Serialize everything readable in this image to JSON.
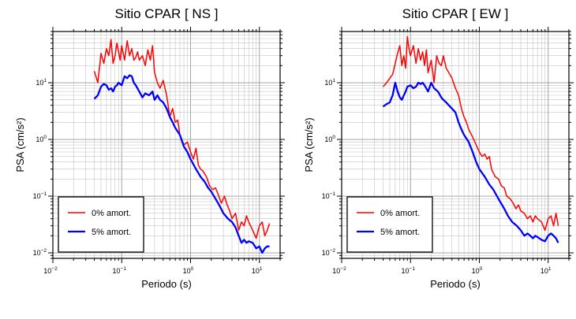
{
  "chart_data": [
    {
      "type": "line",
      "title": "Sitio CPAR [ NS ]",
      "xlabel": "Periodo (s)",
      "ylabel": "PSA (cm/s²)",
      "x_scale": "log",
      "y_scale": "log",
      "xlim": [
        0.01,
        20
      ],
      "ylim": [
        0.008,
        80
      ],
      "x_ticks": [
        {
          "value": 0.01,
          "base": "10",
          "exp": "−2"
        },
        {
          "value": 0.1,
          "base": "10",
          "exp": "−1"
        },
        {
          "value": 1,
          "base": "10",
          "exp": "0"
        },
        {
          "value": 10,
          "base": "10",
          "exp": "1"
        }
      ],
      "y_ticks": [
        {
          "value": 0.01,
          "base": "10",
          "exp": "−2"
        },
        {
          "value": 0.1,
          "base": "10",
          "exp": "−1"
        },
        {
          "value": 1,
          "base": "10",
          "exp": "0"
        },
        {
          "value": 10,
          "base": "10",
          "exp": "1"
        }
      ],
      "grid": true,
      "legend_position": "bottom-left",
      "series": [
        {
          "name": "0% amort.",
          "color": "#ff0000",
          "x": [
            0.04,
            0.045,
            0.05,
            0.055,
            0.06,
            0.065,
            0.07,
            0.075,
            0.08,
            0.085,
            0.09,
            0.095,
            0.1,
            0.11,
            0.12,
            0.13,
            0.14,
            0.15,
            0.16,
            0.17,
            0.18,
            0.2,
            0.22,
            0.24,
            0.26,
            0.28,
            0.3,
            0.33,
            0.36,
            0.4,
            0.45,
            0.5,
            0.55,
            0.6,
            0.65,
            0.7,
            0.8,
            0.9,
            1.0,
            1.1,
            1.2,
            1.3,
            1.4,
            1.5,
            1.7,
            1.9,
            2.1,
            2.3,
            2.5,
            2.8,
            3.1,
            3.4,
            3.7,
            4.0,
            4.5,
            5.0,
            5.5,
            6.0,
            6.5,
            7.0,
            8.0,
            9.0,
            10.0,
            11.0,
            12.0,
            13.0,
            14.0
          ],
          "y": [
            16,
            10,
            33,
            22,
            40,
            30,
            58,
            22,
            30,
            50,
            35,
            25,
            45,
            25,
            55,
            30,
            40,
            25,
            28,
            35,
            25,
            30,
            20,
            38,
            25,
            45,
            15,
            10,
            8,
            11,
            6,
            2.5,
            3.5,
            2.0,
            2.2,
            1.2,
            0.8,
            0.9,
            0.6,
            0.45,
            0.7,
            0.35,
            0.3,
            0.28,
            0.22,
            0.15,
            0.13,
            0.14,
            0.11,
            0.075,
            0.1,
            0.07,
            0.055,
            0.04,
            0.05,
            0.025,
            0.035,
            0.03,
            0.045,
            0.035,
            0.025,
            0.018,
            0.03,
            0.035,
            0.02,
            0.025,
            0.033
          ]
        },
        {
          "name": "5% amort.",
          "color": "#0000ff",
          "x": [
            0.04,
            0.045,
            0.05,
            0.055,
            0.06,
            0.065,
            0.07,
            0.075,
            0.08,
            0.085,
            0.09,
            0.1,
            0.11,
            0.12,
            0.13,
            0.14,
            0.15,
            0.16,
            0.18,
            0.2,
            0.22,
            0.25,
            0.28,
            0.3,
            0.33,
            0.36,
            0.4,
            0.45,
            0.5,
            0.55,
            0.6,
            0.7,
            0.8,
            0.9,
            1.0,
            1.2,
            1.4,
            1.6,
            1.8,
            2.0,
            2.3,
            2.6,
            3.0,
            3.5,
            4.0,
            4.5,
            5.0,
            5.5,
            6.0,
            6.5,
            7.0,
            8.0,
            9.0,
            10.0,
            11.0,
            12.0,
            13.0,
            14.0
          ],
          "y": [
            5.2,
            6.0,
            8.5,
            9.5,
            9.0,
            7.5,
            8.0,
            7.0,
            8.5,
            9.0,
            10.0,
            9.0,
            13.0,
            12.0,
            13.5,
            13.0,
            10.0,
            9.0,
            7.0,
            5.5,
            6.5,
            6.0,
            7.0,
            5.0,
            6.0,
            5.0,
            4.5,
            3.5,
            2.5,
            2.0,
            1.6,
            1.2,
            0.75,
            0.6,
            0.45,
            0.3,
            0.22,
            0.18,
            0.14,
            0.12,
            0.09,
            0.07,
            0.05,
            0.04,
            0.035,
            0.028,
            0.02,
            0.015,
            0.017,
            0.015,
            0.016,
            0.015,
            0.012,
            0.013,
            0.01,
            0.012,
            0.013,
            0.013
          ]
        }
      ]
    },
    {
      "type": "line",
      "title": "Sitio CPAR [ EW ]",
      "xlabel": "Periodo (s)",
      "ylabel": "PSA (cm/s²)",
      "x_scale": "log",
      "y_scale": "log",
      "xlim": [
        0.01,
        20
      ],
      "ylim": [
        0.008,
        80
      ],
      "x_ticks": [
        {
          "value": 0.01,
          "base": "10",
          "exp": "−2"
        },
        {
          "value": 0.1,
          "base": "10",
          "exp": "−1"
        },
        {
          "value": 1,
          "base": "10",
          "exp": "0"
        },
        {
          "value": 10,
          "base": "10",
          "exp": "1"
        }
      ],
      "y_ticks": [
        {
          "value": 0.01,
          "base": "10",
          "exp": "−2"
        },
        {
          "value": 0.1,
          "base": "10",
          "exp": "−1"
        },
        {
          "value": 1,
          "base": "10",
          "exp": "0"
        },
        {
          "value": 10,
          "base": "10",
          "exp": "1"
        }
      ],
      "grid": true,
      "legend_position": "bottom-left",
      "series": [
        {
          "name": "0% amort.",
          "color": "#ff0000",
          "x": [
            0.04,
            0.045,
            0.05,
            0.055,
            0.06,
            0.065,
            0.07,
            0.075,
            0.08,
            0.085,
            0.09,
            0.095,
            0.1,
            0.11,
            0.12,
            0.13,
            0.14,
            0.15,
            0.16,
            0.17,
            0.18,
            0.2,
            0.22,
            0.24,
            0.26,
            0.28,
            0.3,
            0.33,
            0.36,
            0.4,
            0.45,
            0.5,
            0.55,
            0.6,
            0.65,
            0.7,
            0.8,
            0.9,
            1.0,
            1.1,
            1.2,
            1.3,
            1.4,
            1.5,
            1.7,
            1.9,
            2.1,
            2.3,
            2.5,
            2.8,
            3.1,
            3.4,
            3.7,
            4.0,
            4.5,
            5.0,
            5.5,
            6.0,
            6.5,
            7.0,
            8.0,
            9.0,
            10.0,
            11.0,
            12.0,
            13.0,
            14.0
          ],
          "y": [
            8.5,
            10.0,
            12.0,
            14.0,
            22.0,
            33.0,
            45.0,
            20.0,
            30.0,
            18.0,
            65.0,
            40.0,
            30.0,
            45.0,
            22.0,
            40.0,
            25.0,
            35.0,
            20.0,
            38.0,
            15.0,
            25.0,
            10.0,
            30.0,
            22.0,
            20.0,
            30.0,
            18.0,
            15.0,
            12.0,
            8.0,
            6.0,
            3.5,
            2.5,
            2.0,
            1.5,
            1.1,
            0.8,
            0.6,
            0.5,
            0.55,
            0.45,
            0.5,
            0.3,
            0.22,
            0.2,
            0.15,
            0.14,
            0.1,
            0.09,
            0.075,
            0.06,
            0.07,
            0.055,
            0.05,
            0.04,
            0.045,
            0.035,
            0.045,
            0.04,
            0.035,
            0.025,
            0.04,
            0.045,
            0.03,
            0.05,
            0.03
          ]
        },
        {
          "name": "5% amort.",
          "color": "#0000ff",
          "x": [
            0.04,
            0.045,
            0.05,
            0.055,
            0.06,
            0.065,
            0.07,
            0.075,
            0.08,
            0.085,
            0.09,
            0.1,
            0.11,
            0.12,
            0.13,
            0.14,
            0.15,
            0.16,
            0.18,
            0.2,
            0.22,
            0.25,
            0.28,
            0.3,
            0.33,
            0.36,
            0.4,
            0.45,
            0.5,
            0.55,
            0.6,
            0.7,
            0.8,
            0.9,
            1.0,
            1.2,
            1.4,
            1.6,
            1.8,
            2.0,
            2.3,
            2.6,
            3.0,
            3.5,
            4.0,
            4.5,
            5.0,
            5.5,
            6.0,
            6.5,
            7.0,
            8.0,
            9.0,
            10.0,
            11.0,
            12.0,
            13.0,
            14.0
          ],
          "y": [
            3.8,
            4.2,
            4.5,
            6.0,
            10.0,
            7.0,
            5.5,
            5.0,
            6.0,
            7.0,
            8.5,
            9.0,
            8.0,
            8.5,
            10.0,
            9.5,
            10.0,
            9.0,
            7.0,
            10.0,
            8.0,
            7.0,
            5.5,
            5.0,
            4.5,
            4.0,
            3.5,
            3.0,
            2.0,
            1.5,
            1.2,
            0.9,
            0.6,
            0.4,
            0.3,
            0.22,
            0.16,
            0.13,
            0.1,
            0.08,
            0.06,
            0.045,
            0.035,
            0.03,
            0.025,
            0.02,
            0.022,
            0.02,
            0.018,
            0.02,
            0.019,
            0.017,
            0.016,
            0.02,
            0.022,
            0.02,
            0.018,
            0.015
          ]
        }
      ]
    }
  ]
}
